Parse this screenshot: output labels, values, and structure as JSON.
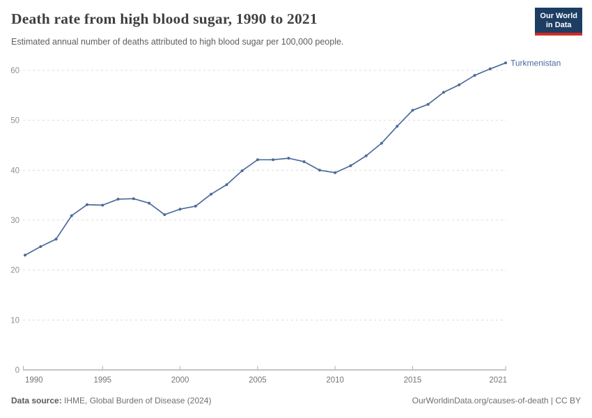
{
  "header": {
    "title": "Death rate from high blood sugar, 1990 to 2021",
    "subtitle": "Estimated annual number of deaths attributed to high blood sugar per 100,000 people.",
    "logo": {
      "line1": "Our World",
      "line2": "in Data",
      "bg_color": "#1d3d63",
      "bar_color": "#d42b20"
    }
  },
  "chart_data": {
    "type": "line",
    "title": "Death rate from high blood sugar, 1990 to 2021",
    "xlabel": "",
    "ylabel": "",
    "xlim": [
      1990,
      2021
    ],
    "ylim": [
      0,
      62
    ],
    "grid": "horizontal-dashed",
    "legend_position": "end-of-line-label",
    "x_ticks": [
      1990,
      1995,
      2000,
      2005,
      2010,
      2015,
      2021
    ],
    "y_ticks": [
      0,
      10,
      20,
      30,
      40,
      50,
      60
    ],
    "series": [
      {
        "name": "Turkmenistan",
        "color": "#4c6a9c",
        "x": [
          1990,
          1991,
          1992,
          1993,
          1994,
          1995,
          1996,
          1997,
          1998,
          1999,
          2000,
          2001,
          2002,
          2003,
          2004,
          2005,
          2006,
          2007,
          2008,
          2009,
          2010,
          2011,
          2012,
          2013,
          2014,
          2015,
          2016,
          2017,
          2018,
          2019,
          2020,
          2021
        ],
        "values": [
          23.0,
          24.7,
          26.2,
          30.9,
          33.1,
          33.0,
          34.2,
          34.3,
          33.4,
          31.1,
          32.2,
          32.8,
          35.2,
          37.1,
          39.9,
          42.1,
          42.1,
          42.4,
          41.7,
          40.0,
          39.5,
          40.9,
          42.9,
          45.4,
          48.8,
          52.0,
          53.2,
          55.6,
          57.1,
          59.0,
          60.3,
          61.5
        ]
      }
    ]
  },
  "footer": {
    "source_label": "Data source:",
    "source_text": " IHME, Global Burden of Disease (2024)",
    "credit": "OurWorldinData.org/causes-of-death | CC BY"
  }
}
